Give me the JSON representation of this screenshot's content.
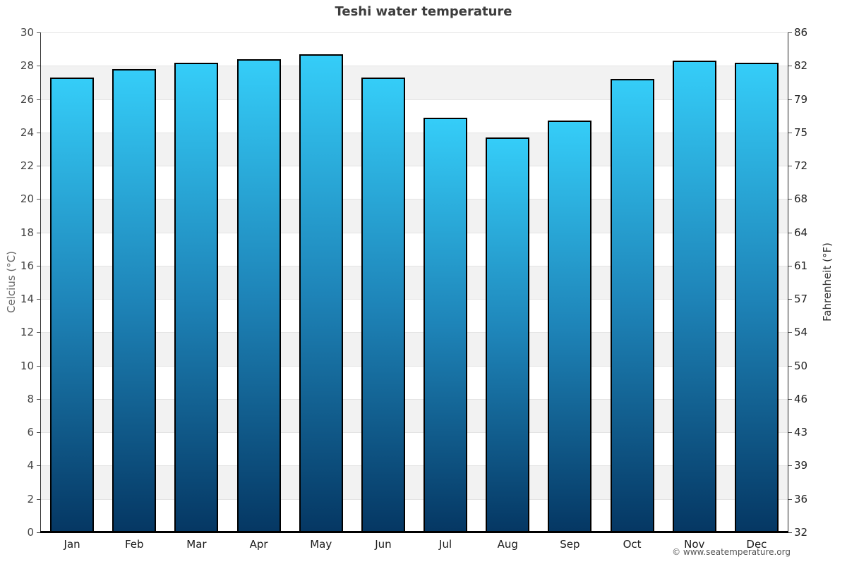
{
  "title": "Teshi water temperature",
  "copyright": "© www.seatemperature.org",
  "chart_data": {
    "type": "bar",
    "title": "Teshi water temperature",
    "categories": [
      "Jan",
      "Feb",
      "Mar",
      "Apr",
      "May",
      "Jun",
      "Jul",
      "Aug",
      "Sep",
      "Oct",
      "Nov",
      "Dec"
    ],
    "values": [
      27.3,
      27.8,
      28.2,
      28.4,
      28.7,
      27.3,
      24.9,
      23.7,
      24.7,
      27.2,
      28.3,
      28.2
    ],
    "unit": "°C",
    "ylabel_left": "Celcius (°C)",
    "ylabel_right": "Fahrenheit (°F)",
    "ylim": [
      0,
      30
    ],
    "ytick_step": 2,
    "yticks_left": [
      30,
      28,
      26,
      24,
      22,
      20,
      18,
      16,
      14,
      12,
      10,
      8,
      6,
      4,
      2,
      0
    ],
    "yticks_right": [
      86,
      82,
      79,
      75,
      72,
      68,
      64,
      61,
      57,
      54,
      50,
      46,
      43,
      39,
      36,
      32
    ],
    "grid": "horizontal-bands-alternating",
    "legend": "none",
    "colors": {
      "bar_top": "#35CDF8",
      "bar_mid": "#1E84B8",
      "bar_bottom": "#053763",
      "bar_border": "#000000",
      "band_light": "#ffffff",
      "band_dark": "#f2f2f2",
      "gridline": "#e4e4e4",
      "axis_line": "#333333",
      "baseline": "#000000"
    }
  }
}
